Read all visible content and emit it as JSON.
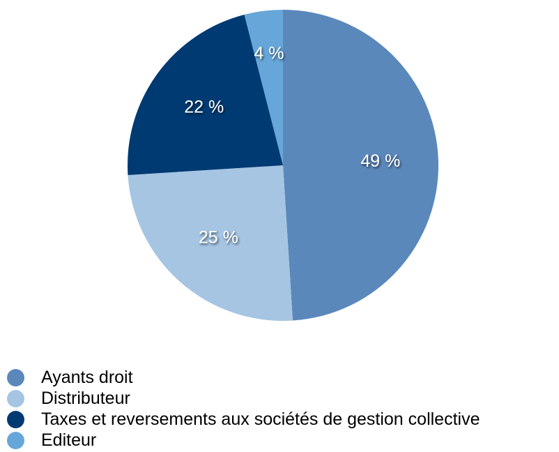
{
  "chart_data": {
    "type": "pie",
    "start_angle_deg": 0,
    "direction": "clockwise",
    "legend_position": "bottom-left",
    "slices": [
      {
        "label": "Ayants droit",
        "value": 49,
        "value_label": "49 %",
        "color": "#5b88bb"
      },
      {
        "label": "Distributeur",
        "value": 25,
        "value_label": "25 %",
        "color": "#a5c5e3"
      },
      {
        "label": "Taxes et reversements aux sociétés de gestion collective",
        "value": 22,
        "value_label": "22 %",
        "color": "#003a72"
      },
      {
        "label": "Editeur",
        "value": 4,
        "value_label": "4 %",
        "color": "#67a6d8"
      }
    ]
  }
}
